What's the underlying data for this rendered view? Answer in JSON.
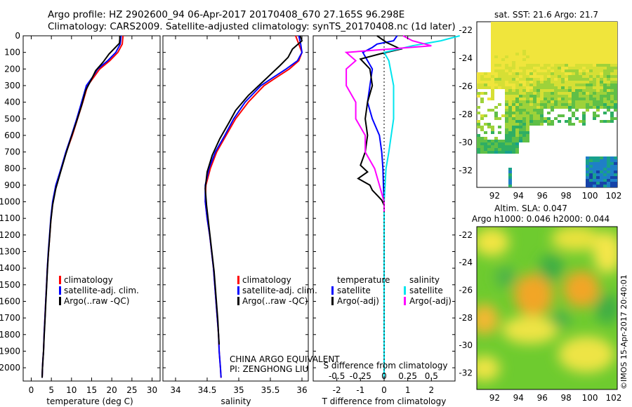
{
  "title": {
    "line1": "Argo profile: HZ 2902600_94 06-Apr-2017 20170408_670 27.165S 96.298E",
    "line2": "Climatology: CARS2009. Satellite-adjusted climatology: synTS_20170408.nc (1d later)"
  },
  "panel_labels": {
    "sst_title": "sat. SST: 21.6 Argo: 21.7",
    "sla_title1": "Altim. SLA: 0.047",
    "sla_title2": "Argo h1000: 0.046 h2000: 0.044",
    "imos_stamp": "©IMOS 15-Apr-2017 20:40:01",
    "annotation1": "CHINA ARGO EQUIVALENT",
    "annotation2": "PI: ZENGHONG LIU"
  },
  "colors": {
    "climatology": "#ff0000",
    "satellite": "#0000ff",
    "argo": "#000000",
    "sal_satellite": "#00e5ee",
    "sal_argo": "#ff00ff"
  },
  "chart_data": [
    {
      "type": "line",
      "xlabel": "temperature (deg C)",
      "ylabel": "",
      "xlim": [
        -2,
        32
      ],
      "ylim": [
        2080,
        0
      ],
      "xticks": [
        "0",
        "5",
        "10",
        "15",
        "20",
        "25",
        "30"
      ],
      "yticks": [
        "0",
        "100",
        "200",
        "300",
        "400",
        "500",
        "600",
        "700",
        "800",
        "900",
        "1000",
        "1100",
        "1200",
        "1300",
        "1400",
        "1500",
        "1600",
        "1700",
        "1800",
        "1900",
        "2000"
      ],
      "legend_position": "lower-middle",
      "series": [
        {
          "name": "climatology",
          "x": [
            22.8,
            22.6,
            21.5,
            19.5,
            17,
            15.5,
            14,
            12.8,
            11.5,
            10.2,
            8.7,
            7.5,
            6.2,
            5.4,
            4.9,
            4.6,
            4.3,
            4.0,
            3.8,
            3.6,
            3.4,
            3.2,
            3.05,
            2.9,
            2.8,
            2.7
          ],
          "y": [
            0,
            50,
            100,
            150,
            200,
            250,
            300,
            400,
            500,
            600,
            700,
            800,
            900,
            1000,
            1100,
            1200,
            1300,
            1400,
            1500,
            1600,
            1700,
            1800,
            1900,
            1950,
            2000,
            2060
          ]
        },
        {
          "name": "satellite-adj. clim.",
          "x": [
            22.3,
            22.1,
            21,
            19,
            16.5,
            15.2,
            13.7,
            12.5,
            11.3,
            10,
            8.6,
            7.4,
            6.1,
            5.3,
            4.85,
            4.55,
            4.25,
            4.0,
            3.8,
            3.6,
            3.4,
            3.2,
            3.05,
            2.9,
            2.8,
            2.7
          ],
          "y": [
            0,
            50,
            100,
            150,
            200,
            250,
            300,
            400,
            500,
            600,
            700,
            800,
            900,
            1000,
            1100,
            1200,
            1300,
            1400,
            1500,
            1600,
            1700,
            1800,
            1900,
            1950,
            2000,
            2060
          ]
        },
        {
          "name": "Argo(..raw -QC)",
          "x": [
            22,
            22,
            21.9,
            19.3,
            17.8,
            16,
            15,
            13.5,
            12.5,
            11.2,
            9.8,
            8.5,
            7.3,
            6.1,
            5.3,
            4.85,
            4.55,
            4.25,
            4.0,
            3.8,
            3.6,
            3.4,
            3.2,
            3.05,
            2.9,
            2.8,
            2.7
          ],
          "y": [
            0,
            20,
            45,
            110,
            160,
            210,
            260,
            330,
            420,
            520,
            620,
            720,
            820,
            920,
            1020,
            1120,
            1220,
            1320,
            1420,
            1520,
            1620,
            1720,
            1820,
            1900,
            1960,
            2000,
            2060
          ]
        }
      ]
    },
    {
      "type": "line",
      "xlabel": "salinity",
      "ylabel": "",
      "xlim": [
        33.8,
        36.1
      ],
      "ylim": [
        2080,
        0
      ],
      "xticks": [
        "34",
        "34.5",
        "35",
        "35.5",
        "36"
      ],
      "yticks": [],
      "legend_position": "lower-middle",
      "series": [
        {
          "name": "climatology",
          "x": [
            35.9,
            35.95,
            36,
            35.95,
            35.8,
            35.6,
            35.4,
            35.15,
            34.95,
            34.8,
            34.65,
            34.55,
            34.48,
            34.47,
            34.5,
            34.54,
            34.57,
            34.6,
            34.62,
            34.64,
            34.66,
            34.68,
            34.69,
            34.7,
            34.71,
            34.72
          ],
          "y": [
            0,
            50,
            100,
            150,
            200,
            250,
            300,
            400,
            500,
            600,
            700,
            800,
            900,
            1000,
            1100,
            1200,
            1300,
            1400,
            1500,
            1600,
            1700,
            1800,
            1900,
            1950,
            2000,
            2060
          ]
        },
        {
          "name": "satellite-adj. clim.",
          "x": [
            35.95,
            35.98,
            36,
            35.93,
            35.75,
            35.55,
            35.35,
            35.1,
            34.92,
            34.78,
            34.63,
            34.53,
            34.47,
            34.47,
            34.5,
            34.54,
            34.57,
            34.6,
            34.62,
            34.64,
            34.66,
            34.68,
            34.69,
            34.7,
            34.71,
            34.72
          ],
          "y": [
            0,
            50,
            100,
            150,
            200,
            250,
            300,
            400,
            500,
            600,
            700,
            800,
            900,
            1000,
            1100,
            1200,
            1300,
            1400,
            1500,
            1600,
            1700,
            1800,
            1900,
            1950,
            2000,
            2060
          ]
        },
        {
          "name": "Argo(..raw -QC)",
          "x": [
            35.97,
            36,
            35.85,
            35.78,
            35.65,
            35.4,
            35.15,
            34.95,
            34.85,
            34.7,
            34.58,
            34.5,
            34.47,
            34.49,
            34.52,
            34.55,
            34.58,
            34.61,
            34.63,
            34.65,
            34.67,
            34.68,
            34.69
          ],
          "y": [
            0,
            30,
            80,
            130,
            180,
            270,
            360,
            450,
            520,
            620,
            720,
            820,
            920,
            1020,
            1120,
            1220,
            1320,
            1420,
            1520,
            1620,
            1720,
            1800,
            1860
          ]
        }
      ]
    },
    {
      "type": "line",
      "xlabel": "T difference from climatology",
      "xlabel2": "S difference from climatology",
      "ylabel": "",
      "xlim": [
        -3,
        3
      ],
      "xlim_top": [
        -0.75,
        0.75
      ],
      "ylim": [
        2080,
        0
      ],
      "xticks": [
        "-2",
        "-1",
        "0",
        "1",
        "2"
      ],
      "xticks_top": [
        "-0.5",
        "-0.25",
        "0",
        "0.25",
        "0.5"
      ],
      "yticks": [],
      "legend_position": "lower-middle",
      "legend_headers": [
        "temperature",
        "salinity"
      ],
      "series": [
        {
          "name": "satellite",
          "variable": "temperature",
          "x": [
            0.55,
            0.4,
            -0.3,
            -0.5,
            -0.9,
            -0.7,
            -0.5,
            -0.6,
            -0.7,
            -0.5,
            -0.2,
            -0.1,
            -0.05,
            -0.03,
            0,
            0,
            0,
            0,
            0,
            0,
            0,
            0
          ],
          "y": [
            0,
            30,
            50,
            70,
            100,
            150,
            200,
            300,
            400,
            500,
            600,
            700,
            800,
            900,
            1000,
            1200,
            1400,
            1600,
            1800,
            1900,
            2000,
            2060
          ]
        },
        {
          "name": "Argo(-adj)",
          "variable": "temperature",
          "x": [
            -0.3,
            0.1,
            0.7,
            -0.2,
            -1.0,
            -0.6,
            -0.5,
            -0.7,
            -0.8,
            -0.7,
            -0.8,
            -1.0,
            -0.7,
            -1.1,
            -0.6,
            -0.5,
            -0.3,
            -0.1,
            0,
            0
          ],
          "y": [
            0,
            40,
            80,
            110,
            140,
            200,
            300,
            400,
            500,
            600,
            700,
            780,
            820,
            860,
            900,
            930,
            960,
            990,
            1020,
            1060
          ]
        },
        {
          "name": "satellite",
          "variable": "salinity",
          "x": [
            0.8,
            0.6,
            0.3,
            0.0,
            0.05,
            0.1,
            0.1,
            0.05,
            0.02,
            0.0,
            0.0,
            0.0,
            0.0,
            0.0,
            0.0,
            0.0
          ],
          "y": [
            0,
            30,
            60,
            100,
            150,
            300,
            500,
            700,
            800,
            1000,
            1200,
            1400,
            1600,
            1800,
            2000,
            2060
          ]
        },
        {
          "name": "Argo(-adj)",
          "variable": "salinity",
          "x": [
            0.2,
            0.3,
            0.5,
            -0.4,
            -0.3,
            -0.4,
            -0.4,
            -0.3,
            -0.3,
            -0.2,
            -0.2,
            -0.1,
            -0.05,
            0,
            0
          ],
          "y": [
            0,
            30,
            60,
            100,
            150,
            200,
            300,
            400,
            500,
            600,
            700,
            800,
            900,
            1000,
            1060
          ]
        }
      ]
    }
  ],
  "maps": {
    "sst": {
      "xticks": [
        "92",
        "94",
        "96",
        "98",
        "100",
        "102"
      ],
      "yticks": [
        "-22",
        "-24",
        "-26",
        "-28",
        "-30",
        "-32"
      ],
      "xlim": [
        90.5,
        102.3
      ],
      "ylim": [
        -33.2,
        -21.4
      ]
    },
    "sla": {
      "xticks": [
        "92",
        "94",
        "96",
        "98",
        "100",
        "102"
      ],
      "yticks": [
        "-22",
        "-24",
        "-26",
        "-28",
        "-30",
        "-32"
      ],
      "xlim": [
        90.5,
        102.3
      ],
      "ylim": [
        -33.2,
        -21.4
      ]
    }
  }
}
